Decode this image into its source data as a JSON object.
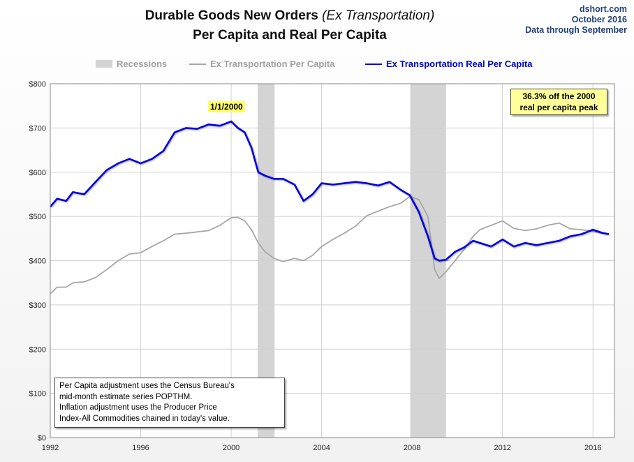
{
  "header": {
    "title_main": "Durable Goods New Orders",
    "title_italic": "(Ex Transportation)",
    "subtitle": "Per Capita and Real Per Capita",
    "source_lines": [
      "dshort.com",
      "October 2016",
      "Data through  September"
    ]
  },
  "annotations": {
    "peak_label": "1/1/2000",
    "callout_lines": [
      "36.3% off the 2000",
      "real per capita peak"
    ],
    "note_lines": [
      "Per Capita adjustment uses the Census Bureau's",
      "mid-month estimate series POPTHM.",
      "Inflation adjustment uses the Producer Price",
      "Index-All Commodities chained in today's value."
    ]
  },
  "chart_data": {
    "type": "line",
    "x_axis": {
      "min": 1992,
      "max": 2016.95,
      "ticks": [
        1992,
        1996,
        2000,
        2004,
        2008,
        2012,
        2016
      ],
      "tick_labels": [
        "1992",
        "1996",
        "2000",
        "2004",
        "2008",
        "2012",
        "2016"
      ]
    },
    "y_axis": {
      "min": 0,
      "max": 800,
      "ticks": [
        0,
        100,
        200,
        300,
        400,
        500,
        600,
        700,
        800
      ],
      "tick_labels": [
        "$0",
        "$100",
        "$200",
        "$300",
        "$400",
        "$500",
        "$600",
        "$700",
        "$800"
      ]
    },
    "grid": true,
    "legend": {
      "placement": "top"
    },
    "recessions": {
      "name": "Recessions",
      "color": "#d4d4d4",
      "periods": [
        [
          2001.17,
          2001.92
        ],
        [
          2007.92,
          2009.5
        ]
      ]
    },
    "series": [
      {
        "name": "Ex Transportation Per Capita",
        "color": "#a6a6a6",
        "points": [
          [
            1992.0,
            325
          ],
          [
            1992.3,
            340
          ],
          [
            1992.7,
            340
          ],
          [
            1993.0,
            350
          ],
          [
            1993.5,
            352
          ],
          [
            1994.0,
            362
          ],
          [
            1994.5,
            380
          ],
          [
            1995.0,
            400
          ],
          [
            1995.5,
            415
          ],
          [
            1996.0,
            418
          ],
          [
            1996.5,
            432
          ],
          [
            1997.0,
            445
          ],
          [
            1997.5,
            460
          ],
          [
            1998.0,
            462
          ],
          [
            1998.5,
            465
          ],
          [
            1999.0,
            468
          ],
          [
            1999.5,
            480
          ],
          [
            2000.0,
            497
          ],
          [
            2000.3,
            498
          ],
          [
            2000.6,
            490
          ],
          [
            2000.9,
            470
          ],
          [
            2001.2,
            440
          ],
          [
            2001.5,
            420
          ],
          [
            2001.9,
            405
          ],
          [
            2002.3,
            398
          ],
          [
            2002.8,
            405
          ],
          [
            2003.2,
            400
          ],
          [
            2003.6,
            412
          ],
          [
            2004.0,
            432
          ],
          [
            2004.5,
            448
          ],
          [
            2005.0,
            462
          ],
          [
            2005.5,
            478
          ],
          [
            2006.0,
            502
          ],
          [
            2006.5,
            512
          ],
          [
            2007.0,
            522
          ],
          [
            2007.5,
            530
          ],
          [
            2007.9,
            545
          ],
          [
            2008.3,
            538
          ],
          [
            2008.7,
            500
          ],
          [
            2009.0,
            380
          ],
          [
            2009.2,
            360
          ],
          [
            2009.5,
            375
          ],
          [
            2009.9,
            400
          ],
          [
            2010.3,
            425
          ],
          [
            2010.7,
            455
          ],
          [
            2011.0,
            470
          ],
          [
            2011.5,
            480
          ],
          [
            2012.0,
            490
          ],
          [
            2012.5,
            473
          ],
          [
            2013.0,
            468
          ],
          [
            2013.5,
            472
          ],
          [
            2014.0,
            480
          ],
          [
            2014.5,
            485
          ],
          [
            2015.0,
            472
          ],
          [
            2015.5,
            470
          ],
          [
            2016.0,
            466
          ],
          [
            2016.4,
            462
          ],
          [
            2016.7,
            460
          ]
        ]
      },
      {
        "name": "Ex Transportation Real Per Capita",
        "color": "#0000e6",
        "points": [
          [
            1992.0,
            522
          ],
          [
            1992.3,
            540
          ],
          [
            1992.7,
            535
          ],
          [
            1993.0,
            555
          ],
          [
            1993.5,
            550
          ],
          [
            1994.0,
            578
          ],
          [
            1994.5,
            605
          ],
          [
            1995.0,
            620
          ],
          [
            1995.5,
            630
          ],
          [
            1996.0,
            620
          ],
          [
            1996.5,
            630
          ],
          [
            1997.0,
            648
          ],
          [
            1997.5,
            690
          ],
          [
            1998.0,
            700
          ],
          [
            1998.5,
            698
          ],
          [
            1999.0,
            708
          ],
          [
            1999.5,
            705
          ],
          [
            2000.0,
            715
          ],
          [
            2000.3,
            700
          ],
          [
            2000.6,
            690
          ],
          [
            2000.9,
            655
          ],
          [
            2001.2,
            600
          ],
          [
            2001.5,
            592
          ],
          [
            2001.9,
            585
          ],
          [
            2002.3,
            585
          ],
          [
            2002.8,
            572
          ],
          [
            2003.2,
            535
          ],
          [
            2003.6,
            550
          ],
          [
            2004.0,
            575
          ],
          [
            2004.5,
            572
          ],
          [
            2005.0,
            575
          ],
          [
            2005.5,
            578
          ],
          [
            2006.0,
            575
          ],
          [
            2006.5,
            570
          ],
          [
            2007.0,
            578
          ],
          [
            2007.5,
            560
          ],
          [
            2007.9,
            548
          ],
          [
            2008.3,
            510
          ],
          [
            2008.7,
            455
          ],
          [
            2009.0,
            405
          ],
          [
            2009.2,
            400
          ],
          [
            2009.5,
            402
          ],
          [
            2009.9,
            420
          ],
          [
            2010.3,
            430
          ],
          [
            2010.7,
            445
          ],
          [
            2011.0,
            440
          ],
          [
            2011.5,
            432
          ],
          [
            2012.0,
            448
          ],
          [
            2012.5,
            432
          ],
          [
            2013.0,
            440
          ],
          [
            2013.5,
            435
          ],
          [
            2014.0,
            440
          ],
          [
            2014.5,
            445
          ],
          [
            2015.0,
            455
          ],
          [
            2015.5,
            460
          ],
          [
            2016.0,
            470
          ],
          [
            2016.4,
            463
          ],
          [
            2016.7,
            460
          ]
        ]
      }
    ]
  }
}
